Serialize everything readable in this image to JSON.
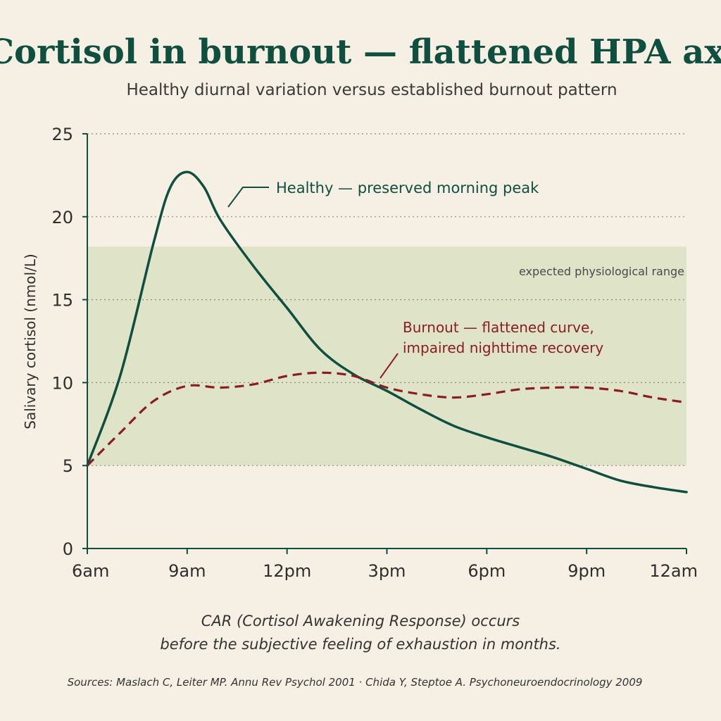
{
  "chart_data": {
    "type": "line",
    "title": "Cortisol in burnout — flattened HPA axis",
    "subtitle": "Healthy diurnal variation versus established burnout pattern",
    "ylabel": "Salivary cortisol (nmol/L)",
    "xlabel": "",
    "x_ticks": [
      "6am",
      "9am",
      "12pm",
      "3pm",
      "6pm",
      "9pm",
      "12am"
    ],
    "y_ticks": [
      "0",
      "5",
      "10",
      "15",
      "20",
      "25"
    ],
    "xlim": [
      6,
      24
    ],
    "ylim": [
      0,
      25
    ],
    "grid": "horizontal dotted",
    "band": {
      "label": "expected physiological range",
      "from": 5,
      "to": 18.2
    },
    "series": [
      {
        "name": "Healthy",
        "style": "solid",
        "color": "#0f4f3f",
        "x": [
          6,
          7,
          8,
          8.5,
          9,
          9.5,
          10,
          11,
          12,
          13,
          14,
          15,
          16,
          17,
          18,
          19,
          20,
          21,
          22,
          23,
          24
        ],
        "y": [
          5.0,
          10.5,
          18.5,
          21.8,
          22.7,
          21.8,
          19.8,
          17.0,
          14.5,
          12.0,
          10.5,
          9.5,
          8.4,
          7.4,
          6.7,
          6.1,
          5.5,
          4.8,
          4.1,
          3.7,
          3.4
        ]
      },
      {
        "name": "Burnout",
        "style": "dashed",
        "color": "#8a1d22",
        "x": [
          6,
          7,
          8,
          9,
          10,
          11,
          12,
          13,
          14,
          15,
          16,
          17,
          18,
          19,
          20,
          21,
          22,
          23,
          24
        ],
        "y": [
          5.0,
          7.0,
          8.9,
          9.8,
          9.7,
          9.9,
          10.4,
          10.6,
          10.4,
          9.7,
          9.3,
          9.1,
          9.3,
          9.6,
          9.7,
          9.7,
          9.5,
          9.1,
          8.8
        ]
      }
    ],
    "annotations": {
      "healthy": "Healthy — preserved morning peak",
      "burnout_line1": "Burnout — flattened curve,",
      "burnout_line2": "impaired nighttime recovery"
    }
  },
  "footer": {
    "note_line1": "CAR (Cortisol Awakening Response) occurs",
    "note_line2": "before the subjective feeling of exhaustion in months.",
    "sources": "Sources: Maslach C, Leiter MP. Annu Rev Psychol 2001 · Chida Y, Steptoe A. Psychoneuroendocrinology 2009"
  },
  "colors": {
    "background": "#f5f0e3",
    "healthy": "#0f4f3f",
    "burnout": "#8a1d22",
    "band": "#dfe3c8",
    "axis": "#0f4f3f"
  }
}
